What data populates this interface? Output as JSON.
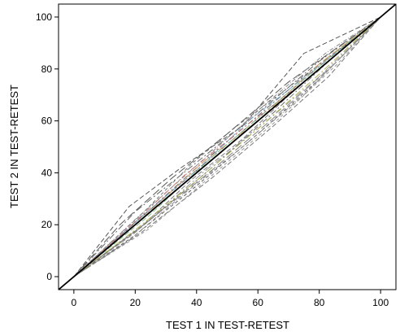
{
  "chart_data": {
    "type": "line",
    "title": "",
    "xlabel": "TEST 1 IN TEST-RETEST",
    "ylabel": "TEST 2 IN TEST-RETEST",
    "xlim": [
      -5,
      105
    ],
    "ylim": [
      -5,
      105
    ],
    "xticks": [
      0,
      20,
      40,
      60,
      80,
      100
    ],
    "yticks": [
      0,
      20,
      40,
      60,
      80,
      100
    ],
    "grid": false,
    "legend": "none",
    "reference_line": {
      "x": [
        -5,
        105
      ],
      "y": [
        -5,
        105
      ],
      "color": "#000000"
    },
    "series": [
      {
        "color": "#555555",
        "x": [
          0,
          18,
          35,
          55,
          75,
          100
        ],
        "y": [
          0,
          27,
          42,
          58,
          86,
          100
        ]
      },
      {
        "color": "#666666",
        "x": [
          0,
          20,
          40,
          60,
          80,
          100
        ],
        "y": [
          0,
          25,
          44,
          63,
          83,
          100
        ]
      },
      {
        "color": "#777777",
        "x": [
          0,
          22,
          38,
          52,
          78,
          100
        ],
        "y": [
          0,
          24,
          43,
          57,
          80,
          100
        ]
      },
      {
        "color": "#5a5a5a",
        "x": [
          0,
          15,
          32,
          50,
          70,
          100
        ],
        "y": [
          0,
          20,
          38,
          55,
          75,
          100
        ]
      },
      {
        "color": "#888888",
        "x": [
          0,
          20,
          45,
          62,
          82,
          100
        ],
        "y": [
          0,
          22,
          48,
          66,
          86,
          100
        ]
      },
      {
        "color": "#6b6b6b",
        "x": [
          0,
          25,
          40,
          58,
          76,
          100
        ],
        "y": [
          0,
          26,
          42,
          60,
          78,
          100
        ]
      },
      {
        "color": "#7a7a7a",
        "x": [
          0,
          20,
          38,
          55,
          72,
          100
        ],
        "y": [
          0,
          17,
          37,
          53,
          72,
          100
        ]
      },
      {
        "color": "#999999",
        "x": [
          0,
          22,
          42,
          60,
          80,
          100
        ],
        "y": [
          0,
          19,
          40,
          57,
          77,
          100
        ]
      },
      {
        "color": "#5f5f5f",
        "x": [
          0,
          20,
          40,
          60,
          80,
          100
        ],
        "y": [
          0,
          16,
          35,
          55,
          76,
          100
        ]
      },
      {
        "color": "#808080",
        "x": [
          0,
          25,
          45,
          65,
          85,
          100
        ],
        "y": [
          0,
          22,
          41,
          61,
          82,
          100
        ]
      },
      {
        "color": "#8a8a8a",
        "x": [
          0,
          18,
          36,
          55,
          75,
          100
        ],
        "y": [
          0,
          14,
          32,
          50,
          70,
          100
        ]
      },
      {
        "color": "#6e6e6e",
        "x": [
          0,
          24,
          46,
          64,
          84,
          100
        ],
        "y": [
          0,
          21,
          43,
          62,
          84,
          100
        ]
      },
      {
        "color": "#777777",
        "x": [
          0,
          22,
          45,
          65,
          83,
          100
        ],
        "y": [
          0,
          17,
          38,
          58,
          77,
          100
        ]
      },
      {
        "color": "#4f4f4f",
        "x": [
          0,
          20,
          40,
          60,
          80,
          100
        ],
        "y": [
          0,
          21,
          41,
          61,
          81,
          100
        ]
      },
      {
        "color": "#9a9a9a",
        "x": [
          0,
          24,
          46,
          66,
          86,
          100
        ],
        "y": [
          0,
          18,
          40,
          60,
          82,
          100
        ]
      },
      {
        "color": "#d9a36a",
        "x": [
          0,
          20,
          42,
          60,
          80,
          100
        ],
        "y": [
          0,
          20,
          44,
          60,
          82,
          100
        ]
      },
      {
        "color": "#7fa7c8",
        "x": [
          0,
          22,
          40,
          58,
          82,
          100
        ],
        "y": [
          0,
          23,
          41,
          61,
          83,
          100
        ]
      },
      {
        "color": "#c77b7b",
        "x": [
          0,
          18,
          36,
          56,
          76,
          100
        ],
        "y": [
          0,
          19,
          39,
          58,
          76,
          100
        ]
      },
      {
        "color": "#8fbf8f",
        "x": [
          0,
          25,
          45,
          65,
          85,
          100
        ],
        "y": [
          0,
          24,
          46,
          66,
          86,
          100
        ]
      },
      {
        "color": "#b3b35a",
        "x": [
          0,
          20,
          40,
          60,
          80,
          100
        ],
        "y": [
          0,
          18,
          37,
          57,
          78,
          100
        ]
      }
    ]
  }
}
